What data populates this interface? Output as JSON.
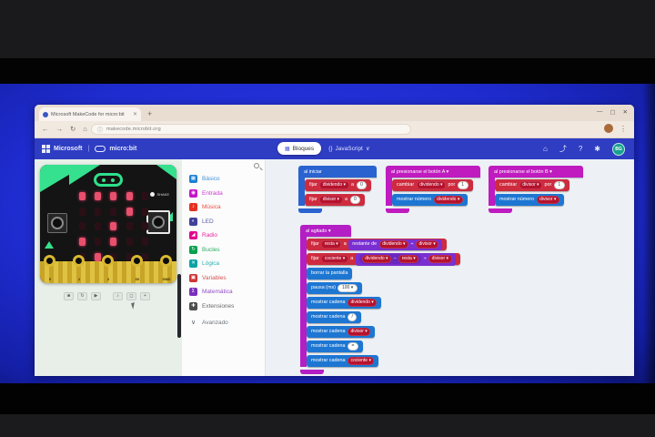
{
  "window": {
    "tab_title": "Microsoft MakeCode for micro:bit",
    "new_tab": "+",
    "minimize": "—",
    "maximize": "▢",
    "close": "✕",
    "back": "←",
    "forward": "→",
    "reload": "↻",
    "home": "⌂",
    "info_icon": "ⓘ",
    "url": "makecode.microbit.org",
    "menu": "⋮"
  },
  "header": {
    "microsoft": "Microsoft",
    "divider": "|",
    "microbit": "micro:bit",
    "blocks_icon": "▦",
    "blocks_label": "Bloques",
    "js_icon": "{}",
    "js_label": "JavaScript",
    "js_chevron": "∨",
    "home_icon": "⌂",
    "share_icon": "⤴",
    "help_icon": "?",
    "settings_icon": "✱",
    "avatar_initials": "BG"
  },
  "simulator": {
    "shake_label": "SHAKE",
    "pins": [
      "0",
      "1",
      "2",
      "3V",
      "GND"
    ],
    "led_matrix": [
      [
        1,
        1,
        1,
        1,
        0
      ],
      [
        0,
        0,
        0,
        1,
        0
      ],
      [
        0,
        0,
        1,
        0,
        0
      ],
      [
        1,
        0,
        1,
        0,
        0
      ],
      [
        0,
        1,
        0,
        0,
        0
      ]
    ],
    "controls": [
      {
        "name": "stop",
        "glyph": "■"
      },
      {
        "name": "restart",
        "glyph": "↻"
      },
      {
        "name": "slow-mo",
        "glyph": "▶"
      },
      {
        "name": "mute",
        "glyph": "♪"
      },
      {
        "name": "screenshot",
        "glyph": "◻"
      },
      {
        "name": "fullscreen",
        "glyph": "+"
      }
    ]
  },
  "toolbox": {
    "categories": [
      {
        "label": "Básico",
        "glyph": "▦",
        "color": "#1E7FD4"
      },
      {
        "label": "Entrada",
        "glyph": "◉",
        "color": "#C316C9"
      },
      {
        "label": "Música",
        "glyph": "♪",
        "color": "#E63022"
      },
      {
        "label": "LED",
        "glyph": "◐",
        "color": "#41419B"
      },
      {
        "label": "Radio",
        "glyph": "◢",
        "color": "#E3008C"
      },
      {
        "label": "Bucles",
        "glyph": "↻",
        "color": "#07A04D"
      },
      {
        "label": "Lógica",
        "glyph": "✕",
        "color": "#0AA3A5"
      },
      {
        "label": "Variables",
        "glyph": "▣",
        "color": "#D03434"
      },
      {
        "label": "Matemática",
        "glyph": "Σ",
        "color": "#7B2FBB"
      },
      {
        "label": "Extensiones",
        "glyph": "✚",
        "color": "#4E4E4E"
      },
      {
        "label": "Avanzado",
        "glyph": "∨",
        "color": "#57606A"
      }
    ]
  },
  "blocks": {
    "on_start": {
      "title": "al iniciar",
      "r1": {
        "kw": "fijar",
        "v": "dividendo ▾",
        "mid": "a",
        "val": "0"
      },
      "r2": {
        "kw": "fijar",
        "v": "divisor ▾",
        "mid": "a",
        "val": "0"
      }
    },
    "on_a": {
      "title": "al presionarse el botón A ▾",
      "r1": {
        "kw": "cambiar",
        "v": "dividendo ▾",
        "mid": "por",
        "val": "1"
      },
      "r2": {
        "kw": "mostrar número",
        "v": "dividendo ▾"
      }
    },
    "on_b": {
      "title": "al presionarse el botón B ▾",
      "r1": {
        "kw": "cambiar",
        "v": "divisor ▾",
        "mid": "por",
        "val": "1"
      },
      "r2": {
        "kw": "mostrar número",
        "v": "divisor ▾"
      }
    },
    "on_shake": {
      "title": "al agitado ▾",
      "r1": {
        "kw": "fijar",
        "v": "resta ▾",
        "mid": "a",
        "fn": "restante de",
        "a": "dividendo ▾",
        "op": "÷",
        "b": "divisor ▾"
      },
      "r2": {
        "kw": "fijar",
        "v": "cociente ▾",
        "mid": "a",
        "a": "dividendo ▾",
        "op1": "−",
        "b": "resta ▾",
        "op2": "÷",
        "c": "divisor ▾"
      },
      "r3": {
        "kw": "borrar la pantalla"
      },
      "r4": {
        "kw": "pausa (ms)",
        "val": "100 ▾"
      },
      "r5": {
        "kw": "mostrar cadena",
        "v": "dividendo ▾"
      },
      "r6": {
        "kw": "mostrar cadena",
        "val": "/"
      },
      "r7": {
        "kw": "mostrar cadena",
        "v": "divisor ▾"
      },
      "r8": {
        "kw": "mostrar cadena",
        "val": "="
      },
      "r9": {
        "kw": "mostrar cadena",
        "v": "cociente ▾"
      }
    }
  },
  "colors": {
    "desktop_blue": "#1F2CD0",
    "makecode_header": "#2E3DC2",
    "event_magenta": "#BF1BBF",
    "shake_magenta": "#B31FC4",
    "onstart_blue": "#2A62D0",
    "basic_block_blue": "#1D76D2",
    "variable_red": "#CE2B3E",
    "math_purple": "#7A2FD1",
    "board_green": "#35E08E",
    "led_red": "#E8506D",
    "avatar_teal": "#17A08F"
  }
}
